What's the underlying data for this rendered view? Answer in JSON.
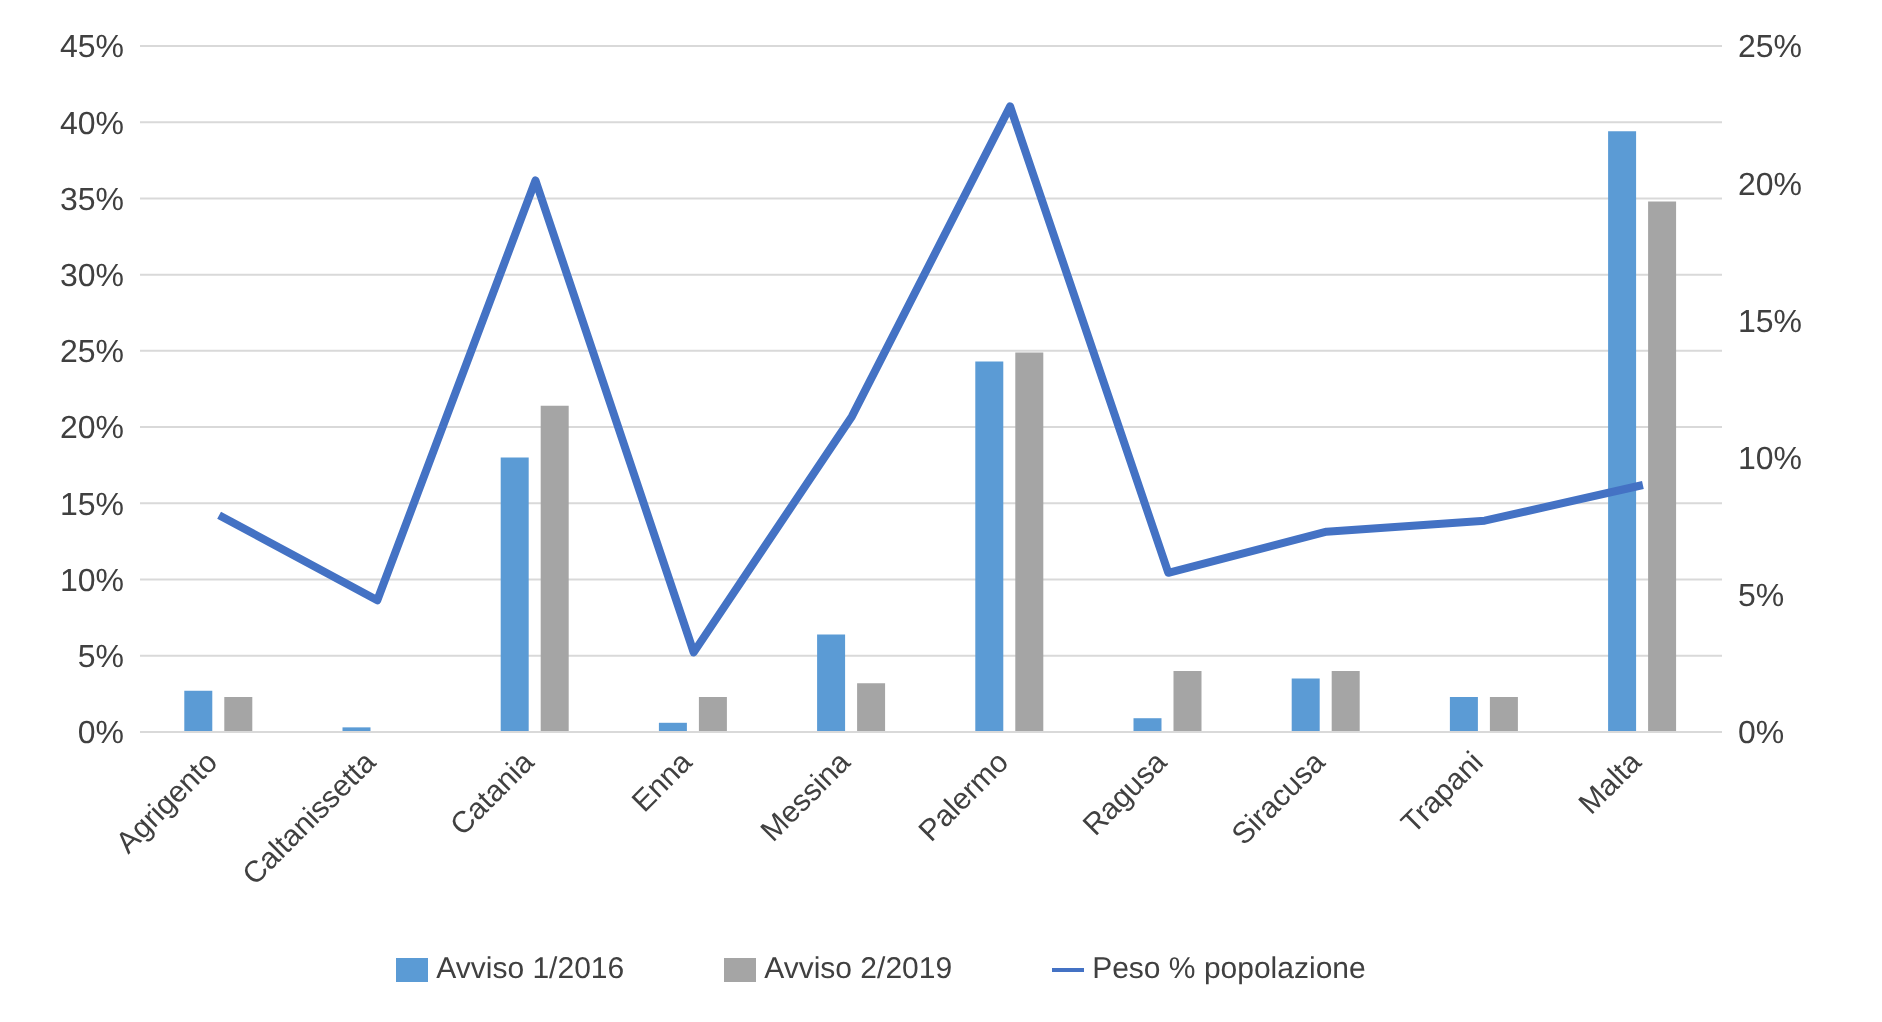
{
  "chart_data": {
    "type": "bar",
    "categories": [
      "Agrigento",
      "Caltanissetta",
      "Catania",
      "Enna",
      "Messina",
      "Palermo",
      "Ragusa",
      "Siracusa",
      "Trapani",
      "Malta"
    ],
    "series": [
      {
        "name": "Avviso 1/2016",
        "color": "#5b9bd5",
        "values": [
          2.7,
          0.3,
          18.0,
          0.6,
          6.4,
          24.3,
          0.9,
          3.5,
          2.3,
          39.4
        ]
      },
      {
        "name": "Avviso 2/2019",
        "color": "#a5a5a5",
        "values": [
          2.3,
          null,
          21.4,
          2.3,
          3.2,
          24.9,
          4.0,
          4.0,
          2.3,
          34.8
        ]
      },
      {
        "name": "Peso % popolazione",
        "type": "line",
        "axis": "y2",
        "color": "#4472c4",
        "values": [
          7.9,
          4.8,
          20.1,
          2.9,
          11.5,
          22.8,
          5.8,
          7.3,
          7.7,
          9.0
        ]
      }
    ],
    "ylim": [
      0,
      45
    ],
    "yticks": [
      {
        "value": 0,
        "label": "0%"
      },
      {
        "value": 5,
        "label": "5%"
      },
      {
        "value": 10,
        "label": "10%"
      },
      {
        "value": 15,
        "label": "15%"
      },
      {
        "value": 20,
        "label": "20%"
      },
      {
        "value": 25,
        "label": "25%"
      },
      {
        "value": 30,
        "label": "30%"
      },
      {
        "value": 35,
        "label": "35%"
      },
      {
        "value": 40,
        "label": "40%"
      },
      {
        "value": 45,
        "label": "45%"
      }
    ],
    "y2lim": [
      0,
      25
    ],
    "y2ticks": [
      {
        "value": 0,
        "label": "0%"
      },
      {
        "value": 5,
        "label": "5%"
      },
      {
        "value": 10,
        "label": "10%"
      },
      {
        "value": 15,
        "label": "15%"
      },
      {
        "value": 20,
        "label": "20%"
      },
      {
        "value": 25,
        "label": "25%"
      }
    ],
    "grid": "y",
    "legend": "bottom",
    "marker": "none",
    "line_style": "solid"
  }
}
